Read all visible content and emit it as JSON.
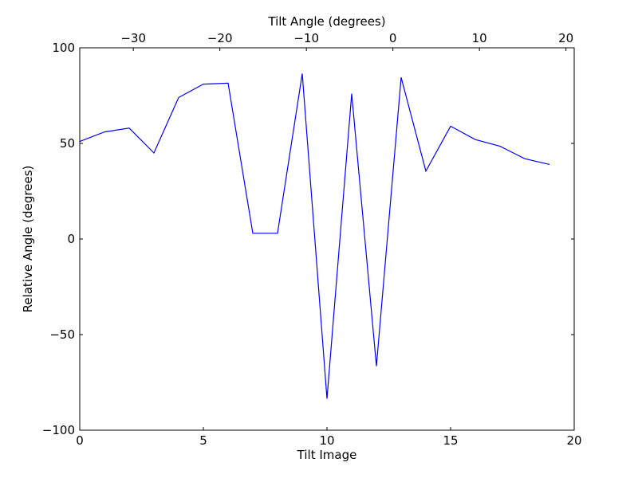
{
  "chart_data": {
    "type": "line",
    "xlabel": "Tilt Image",
    "ylabel": "Relative Angle (degrees)",
    "top_xlabel": "Tilt Angle (degrees)",
    "xlim": [
      0,
      20
    ],
    "ylim": [
      -100,
      100
    ],
    "x_ticks": [
      0,
      5,
      10,
      15,
      20
    ],
    "y_ticks": [
      -100,
      -50,
      0,
      50,
      100
    ],
    "top_ticks": [
      -30,
      -20,
      -10,
      0,
      10,
      20
    ],
    "top_tick_x_equivalent": [
      2.167,
      5.667,
      9.167,
      12.667,
      16.167,
      19.667
    ],
    "series": [
      {
        "color": "#0000ff",
        "x": [
          0,
          1,
          2,
          3,
          4,
          5,
          6,
          7,
          8,
          9,
          10,
          11,
          12,
          13,
          14,
          15,
          16,
          17,
          18,
          19
        ],
        "y": [
          51,
          56,
          58,
          45,
          74,
          81,
          81.5,
          3,
          3,
          86.5,
          -83.5,
          76,
          -66.5,
          84.5,
          35.5,
          59,
          52,
          48.5,
          42,
          39
        ]
      }
    ]
  }
}
